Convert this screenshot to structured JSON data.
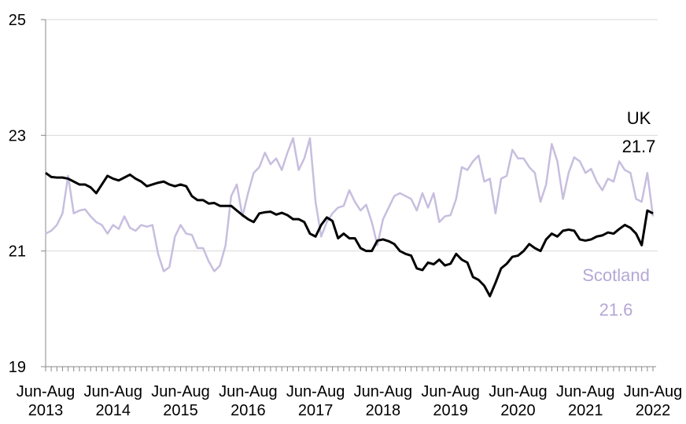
{
  "chart_data": {
    "type": "line",
    "categories": [
      "Jun-Aug 2013",
      null,
      null,
      null,
      null,
      null,
      null,
      null,
      null,
      null,
      null,
      null,
      "Jun-Aug 2014",
      null,
      null,
      null,
      null,
      null,
      null,
      null,
      null,
      null,
      null,
      null,
      "Jun-Aug 2015",
      null,
      null,
      null,
      null,
      null,
      null,
      null,
      null,
      null,
      null,
      null,
      "Jun-Aug 2016",
      null,
      null,
      null,
      null,
      null,
      null,
      null,
      null,
      null,
      null,
      null,
      "Jun-Aug 2017",
      null,
      null,
      null,
      null,
      null,
      null,
      null,
      null,
      null,
      null,
      null,
      "Jun-Aug 2018",
      null,
      null,
      null,
      null,
      null,
      null,
      null,
      null,
      null,
      null,
      null,
      "Jun-Aug 2019",
      null,
      null,
      null,
      null,
      null,
      null,
      null,
      null,
      null,
      null,
      null,
      "Jun-Aug 2020",
      null,
      null,
      null,
      null,
      null,
      null,
      null,
      null,
      null,
      null,
      null,
      "Jun-Aug 2021",
      null,
      null,
      null,
      null,
      null,
      null,
      null,
      null,
      null,
      null,
      null,
      "Jun-Aug 2022"
    ],
    "series": [
      {
        "name": "UK",
        "color": "#000000",
        "end_label": "21.7",
        "values": [
          22.35,
          22.28,
          22.27,
          22.27,
          22.25,
          22.2,
          22.15,
          22.15,
          22.1,
          22.0,
          22.15,
          22.3,
          22.25,
          22.22,
          22.27,
          22.32,
          22.25,
          22.2,
          22.12,
          22.15,
          22.18,
          22.2,
          22.15,
          22.12,
          22.15,
          22.12,
          21.95,
          21.88,
          21.88,
          21.82,
          21.83,
          21.78,
          21.78,
          21.78,
          21.7,
          21.62,
          21.55,
          21.5,
          21.65,
          21.67,
          21.68,
          21.63,
          21.66,
          21.62,
          21.55,
          21.55,
          21.5,
          21.3,
          21.25,
          21.45,
          21.58,
          21.52,
          21.22,
          21.3,
          21.22,
          21.22,
          21.05,
          21.0,
          21.0,
          21.18,
          21.2,
          21.17,
          21.12,
          21.0,
          20.95,
          20.92,
          20.7,
          20.67,
          20.8,
          20.77,
          20.85,
          20.75,
          20.78,
          20.95,
          20.85,
          20.8,
          20.55,
          20.5,
          20.4,
          20.22,
          20.45,
          20.7,
          20.78,
          20.9,
          20.92,
          21.0,
          21.12,
          21.05,
          21.0,
          21.2,
          21.3,
          21.25,
          21.35,
          21.37,
          21.35,
          21.2,
          21.18,
          21.2,
          21.25,
          21.27,
          21.32,
          21.3,
          21.38,
          21.45,
          21.4,
          21.3,
          21.1,
          21.7,
          21.65
        ]
      },
      {
        "name": "Scotland",
        "color": "#c7bedf",
        "end_label": "21.6",
        "values": [
          21.3,
          21.35,
          21.45,
          21.65,
          22.3,
          21.65,
          21.7,
          21.72,
          21.6,
          21.5,
          21.45,
          21.3,
          21.45,
          21.38,
          21.6,
          21.4,
          21.35,
          21.45,
          21.42,
          21.45,
          20.95,
          20.65,
          20.72,
          21.25,
          21.45,
          21.3,
          21.28,
          21.05,
          21.05,
          20.82,
          20.65,
          20.75,
          21.1,
          21.95,
          22.15,
          21.6,
          22.0,
          22.35,
          22.45,
          22.7,
          22.5,
          22.6,
          22.4,
          22.7,
          22.95,
          22.4,
          22.6,
          22.95,
          21.85,
          21.25,
          21.5,
          21.65,
          21.75,
          21.78,
          22.05,
          21.85,
          21.7,
          21.8,
          21.5,
          21.1,
          21.55,
          21.75,
          21.95,
          22.0,
          21.95,
          21.9,
          21.7,
          22.0,
          21.75,
          22.0,
          21.5,
          21.6,
          21.62,
          21.9,
          22.45,
          22.4,
          22.55,
          22.65,
          22.2,
          22.25,
          21.65,
          22.25,
          22.3,
          22.75,
          22.6,
          22.6,
          22.45,
          22.35,
          21.85,
          22.15,
          22.85,
          22.55,
          21.9,
          22.35,
          22.62,
          22.55,
          22.35,
          22.42,
          22.2,
          22.05,
          22.25,
          22.2,
          22.55,
          22.4,
          22.35,
          21.9,
          21.85,
          22.35,
          21.6
        ]
      }
    ],
    "ylim": [
      19,
      25
    ],
    "yticks": [
      19,
      21,
      23,
      25
    ],
    "grid": true
  }
}
